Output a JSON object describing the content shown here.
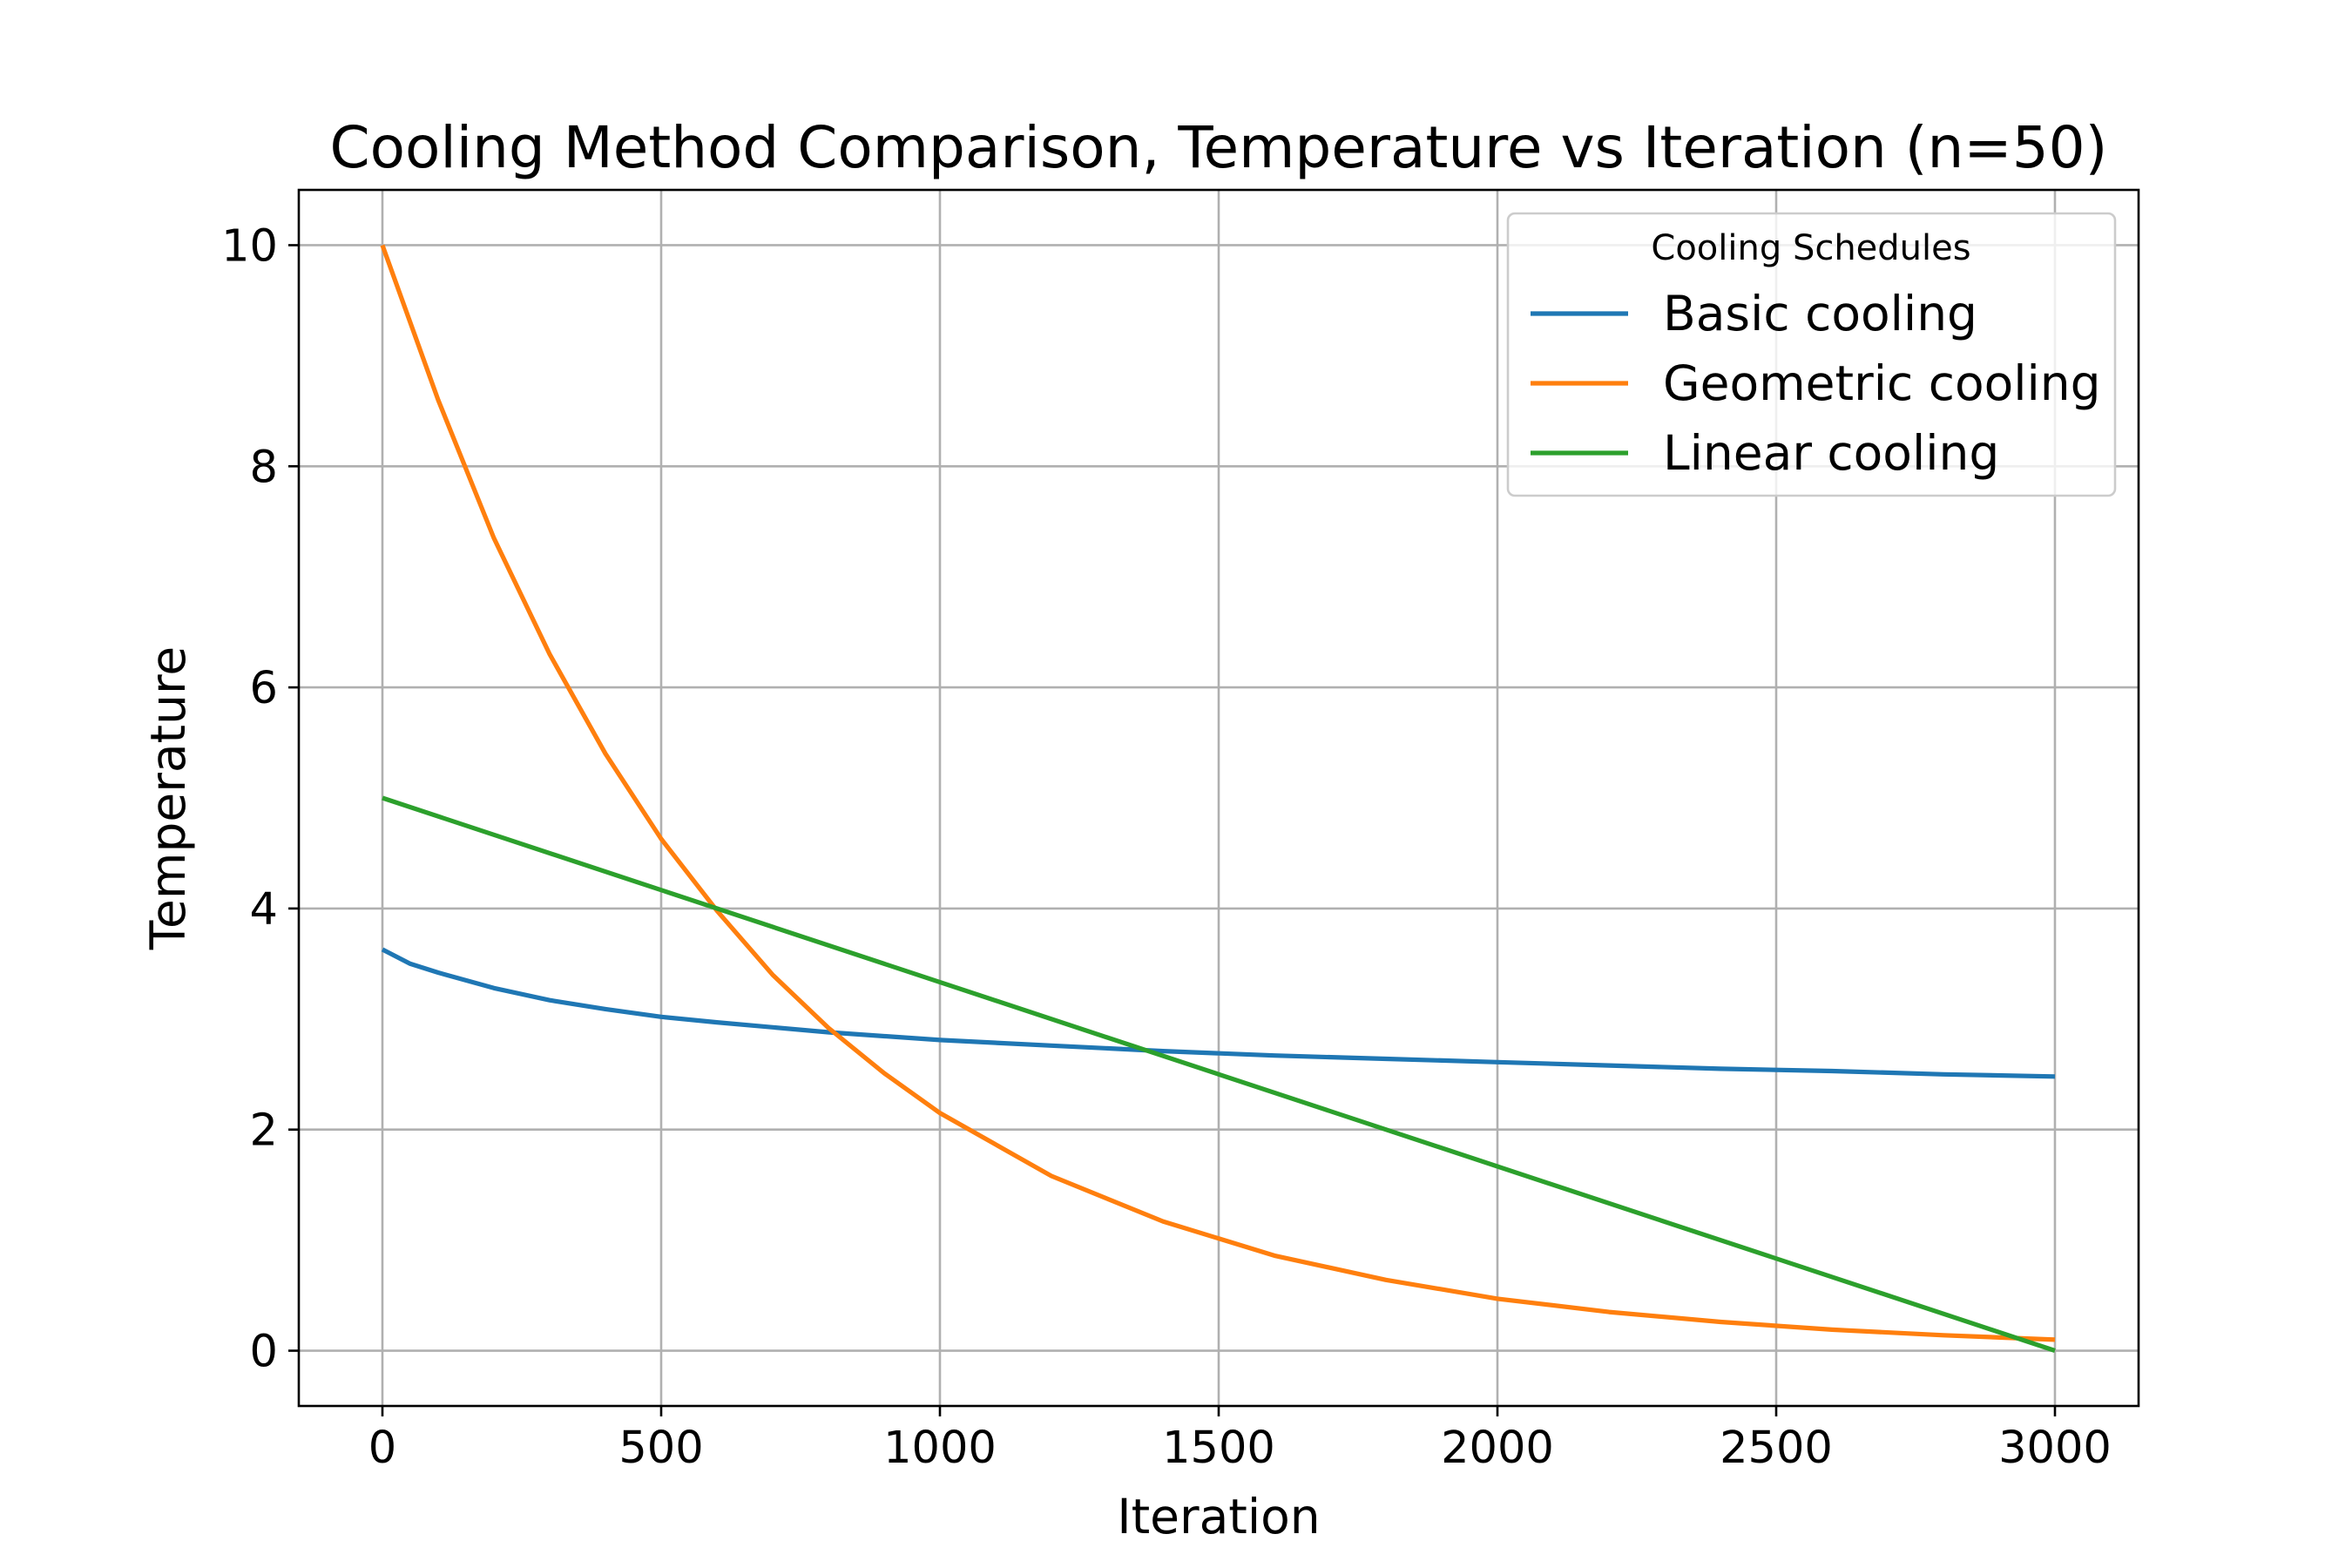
{
  "chart_data": {
    "type": "line",
    "title": "Cooling Method Comparison, Temperature vs Iteration (n=50)",
    "xlabel": "Iteration",
    "ylabel": "Temperature",
    "xlim": [
      -150,
      3150
    ],
    "ylim": [
      -0.5,
      10.5
    ],
    "xticks": [
      0,
      500,
      1000,
      1500,
      2000,
      2500,
      3000
    ],
    "yticks": [
      0,
      2,
      4,
      6,
      8,
      10
    ],
    "xtick_labels": [
      "0",
      "500",
      "1000",
      "1500",
      "2000",
      "2500",
      "3000"
    ],
    "ytick_labels": [
      "0",
      "2",
      "4",
      "6",
      "8",
      "10"
    ],
    "grid": true,
    "legend": {
      "title": "Cooling Schedules",
      "placement": "top-right"
    },
    "series": [
      {
        "name": "Basic cooling",
        "color": "#1f77b4",
        "x": [
          0,
          50,
          100,
          200,
          300,
          400,
          500,
          600,
          800,
          1000,
          1200,
          1400,
          1600,
          1800,
          2000,
          2200,
          2400,
          2600,
          2800,
          3000
        ],
        "values": [
          3.63,
          3.5,
          3.42,
          3.28,
          3.17,
          3.09,
          3.02,
          2.97,
          2.88,
          2.81,
          2.76,
          2.71,
          2.67,
          2.64,
          2.61,
          2.58,
          2.55,
          2.53,
          2.5,
          2.48
        ]
      },
      {
        "name": "Geometric cooling",
        "color": "#ff7f0e",
        "x": [
          0,
          100,
          200,
          300,
          400,
          500,
          600,
          700,
          800,
          900,
          1000,
          1200,
          1400,
          1600,
          1800,
          2000,
          2200,
          2400,
          2600,
          2800,
          3000
        ],
        "values": [
          10.0,
          8.6,
          7.35,
          6.3,
          5.4,
          4.63,
          3.98,
          3.4,
          2.92,
          2.51,
          2.15,
          1.58,
          1.17,
          0.86,
          0.64,
          0.47,
          0.35,
          0.26,
          0.19,
          0.14,
          0.1
        ]
      },
      {
        "name": "Linear cooling",
        "color": "#2ca02c",
        "x": [
          0,
          3000
        ],
        "values": [
          5.0,
          0.0
        ]
      }
    ]
  }
}
